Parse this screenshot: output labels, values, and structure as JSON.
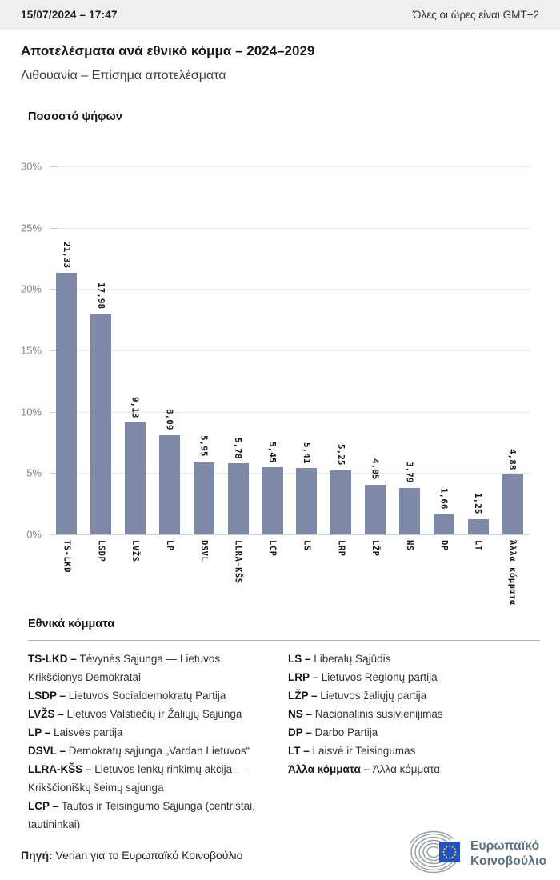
{
  "header": {
    "datetime": "15/07/2024 – 17:47",
    "timezone_note": "Όλες οι ώρες είναι GMT+2"
  },
  "title": "Αποτελέσματα ανά εθνικό κόμμα – 2024–2029",
  "subtitle": "Λιθουανία – Επίσημα αποτελέσματα",
  "chart_data": {
    "type": "bar",
    "title": "Ποσοστό ψήφων",
    "categories": [
      "TS-LKD",
      "LSDP",
      "LVŽS",
      "LP",
      "DSVL",
      "LLRA-KŠS",
      "LCP",
      "LS",
      "LRP",
      "LŽP",
      "NS",
      "DP",
      "LT",
      "Άλλα κόμματα"
    ],
    "values": [
      21.33,
      17.98,
      9.13,
      8.09,
      5.95,
      5.78,
      5.45,
      5.41,
      5.25,
      4.05,
      3.79,
      1.66,
      1.25,
      4.88
    ],
    "value_labels": [
      "21,33",
      "17,98",
      "9,13",
      "8,09",
      "5,95",
      "5,78",
      "5,45",
      "5,41",
      "5,25",
      "4,05",
      "3,79",
      "1,66",
      "1,25",
      "4,88"
    ],
    "xlabel": "",
    "ylabel": "Ποσοστό ψήφων",
    "ylim": [
      0,
      30
    ],
    "yticks": [
      30,
      25,
      20,
      15,
      10,
      5,
      0
    ],
    "ytick_labels": [
      "30%",
      "25%",
      "20%",
      "15%",
      "10%",
      "5%",
      "0%"
    ],
    "grid": true,
    "bar_color": "#7d89a6",
    "legend_position": "none"
  },
  "legend": {
    "heading": "Εθνικά κόμματα",
    "columns": [
      [
        {
          "abbr": "TS-LKD –",
          "name": "Tėvynės Sąjunga — Lietuvos Krikščionys Demokratai"
        },
        {
          "abbr": "LSDP –",
          "name": "Lietuvos Socialdemokratų Partija"
        },
        {
          "abbr": "LVŽS –",
          "name": "Lietuvos Valstiečių ir Žaliųjų Sąjunga"
        },
        {
          "abbr": "LP –",
          "name": "Laisvės partija"
        },
        {
          "abbr": "DSVL –",
          "name": "Demokratų sąjunga „Vardan Lietuvos“"
        },
        {
          "abbr": "LLRA-KŠS –",
          "name": "Lietuvos lenkų rinkimų akcija — Krikščioniškų šeimų sąjunga"
        },
        {
          "abbr": "LCP –",
          "name": "Tautos ir Teisingumo Sąjunga (centristai, tautininkai)"
        }
      ],
      [
        {
          "abbr": "LS –",
          "name": "Liberalų Sąjūdis"
        },
        {
          "abbr": "LRP –",
          "name": "Lietuvos Regionų partija"
        },
        {
          "abbr": "LŽP –",
          "name": "Lietuvos žaliųjų partija"
        },
        {
          "abbr": "NS –",
          "name": "Nacionalinis susivienijimas"
        },
        {
          "abbr": "DP –",
          "name": "Darbo Partija"
        },
        {
          "abbr": "LT –",
          "name": "Laisvė ir Teisingumas"
        },
        {
          "abbr": "Άλλα κόμματα –",
          "name": "Άλλα κόμματα"
        }
      ]
    ]
  },
  "footer": {
    "source_label": "Πηγή:",
    "source_text": " Verian για το Ευρωπαϊκό Κοινοβούλιο",
    "logo_line1": "Ευρωπαϊκό",
    "logo_line2": "Κοινοβούλιο"
  },
  "colors": {
    "bar": "#7d89a6",
    "topbar_bg": "#efefef",
    "gridline": "#e9e9e9",
    "baseline": "#ccd2dd",
    "eu_flag_blue": "#2353c2",
    "eu_star_yellow": "#ffd617",
    "logo_text": "#5d7081"
  }
}
